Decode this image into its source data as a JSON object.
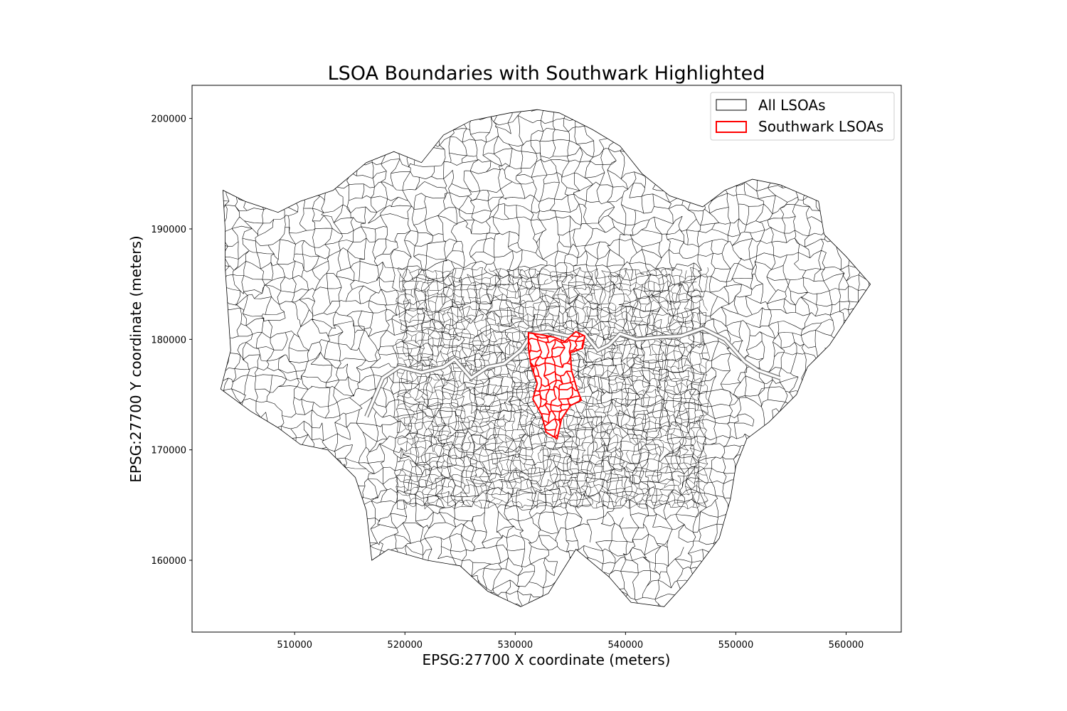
{
  "chart_data": {
    "type": "map",
    "title": "LSOA Boundaries with Southwark Highlighted",
    "xlabel": "EPSG:27700 X coordinate (meters)",
    "ylabel": "EPSG:27700 Y coordinate (meters)",
    "xlim": [
      500700,
      565000
    ],
    "ylim": [
      153500,
      203000
    ],
    "x_ticks": [
      510000,
      520000,
      530000,
      540000,
      550000,
      560000
    ],
    "x_tick_labels": [
      "510000",
      "520000",
      "530000",
      "540000",
      "550000",
      "560000"
    ],
    "y_ticks": [
      160000,
      170000,
      180000,
      190000,
      200000
    ],
    "y_tick_labels": [
      "160000",
      "170000",
      "180000",
      "190000",
      "200000"
    ],
    "grid": true,
    "legend": {
      "placement": "upper right",
      "entries": [
        {
          "label": "All LSOAs",
          "edge_color": "#000000"
        },
        {
          "label": "Southwark LSOAs",
          "edge_color": "#ff0000"
        }
      ]
    },
    "layers": [
      {
        "name": "All LSOAs",
        "edge_color": "#000000",
        "outline_epsg27700": [
          [
            503300,
            175500
          ],
          [
            504200,
            179000
          ],
          [
            504000,
            182000
          ],
          [
            503700,
            186500
          ],
          [
            503700,
            190000
          ],
          [
            503500,
            193500
          ],
          [
            505500,
            192500
          ],
          [
            508500,
            191500
          ],
          [
            510500,
            192500
          ],
          [
            513500,
            193500
          ],
          [
            516500,
            196000
          ],
          [
            519000,
            197000
          ],
          [
            521500,
            196000
          ],
          [
            523500,
            198500
          ],
          [
            526000,
            199800
          ],
          [
            529500,
            200500
          ],
          [
            532000,
            200800
          ],
          [
            534000,
            200500
          ],
          [
            537000,
            199000
          ],
          [
            539500,
            197500
          ],
          [
            541500,
            195000
          ],
          [
            544000,
            193000
          ],
          [
            547000,
            192000
          ],
          [
            549000,
            193500
          ],
          [
            551500,
            194500
          ],
          [
            554000,
            194000
          ],
          [
            557500,
            192500
          ],
          [
            558000,
            189500
          ],
          [
            560000,
            187500
          ],
          [
            562200,
            185000
          ],
          [
            560500,
            182500
          ],
          [
            558500,
            179500
          ],
          [
            556500,
            177500
          ],
          [
            555500,
            175000
          ],
          [
            553000,
            172500
          ],
          [
            551000,
            171000
          ],
          [
            550000,
            168500
          ],
          [
            549500,
            165500
          ],
          [
            548500,
            162000
          ],
          [
            545500,
            158000
          ],
          [
            543500,
            155800
          ],
          [
            540500,
            156200
          ],
          [
            538500,
            158500
          ],
          [
            535500,
            161000
          ],
          [
            533000,
            157000
          ],
          [
            530500,
            155800
          ],
          [
            527500,
            157200
          ],
          [
            525000,
            159500
          ],
          [
            522000,
            160000
          ],
          [
            518500,
            161000
          ],
          [
            517000,
            160000
          ],
          [
            516500,
            164500
          ],
          [
            515500,
            167500
          ],
          [
            513000,
            170000
          ],
          [
            510500,
            170500
          ],
          [
            508500,
            172000
          ],
          [
            506000,
            173500
          ],
          [
            503300,
            175500
          ]
        ]
      },
      {
        "name": "Southwark LSOAs",
        "edge_color": "#ff0000",
        "outline_epsg27700": [
          [
            531200,
            180600
          ],
          [
            532500,
            180400
          ],
          [
            533500,
            180200
          ],
          [
            534500,
            179800
          ],
          [
            535500,
            180700
          ],
          [
            536300,
            180300
          ],
          [
            536100,
            179200
          ],
          [
            535000,
            178800
          ],
          [
            535100,
            177200
          ],
          [
            535600,
            175500
          ],
          [
            536000,
            174500
          ],
          [
            535000,
            174000
          ],
          [
            534200,
            172800
          ],
          [
            533800,
            171000
          ],
          [
            532800,
            171600
          ],
          [
            532400,
            173200
          ],
          [
            531600,
            174600
          ],
          [
            532000,
            176000
          ],
          [
            531400,
            177800
          ],
          [
            531200,
            179200
          ],
          [
            531200,
            180600
          ]
        ]
      }
    ],
    "river_thames_epsg27700": [
      [
        516500,
        173000
      ],
      [
        518000,
        176500
      ],
      [
        519500,
        177500
      ],
      [
        521500,
        177000
      ],
      [
        523500,
        177500
      ],
      [
        524500,
        178200
      ],
      [
        526000,
        176500
      ],
      [
        527500,
        177500
      ],
      [
        529000,
        177800
      ],
      [
        530500,
        179000
      ],
      [
        531500,
        180500
      ],
      [
        533000,
        180700
      ],
      [
        534800,
        180300
      ],
      [
        536200,
        180600
      ],
      [
        537500,
        179000
      ],
      [
        538500,
        179500
      ],
      [
        539500,
        180500
      ],
      [
        541000,
        180000
      ],
      [
        543000,
        180200
      ],
      [
        545000,
        180300
      ],
      [
        547000,
        181000
      ],
      [
        549000,
        180000
      ],
      [
        550800,
        178000
      ],
      [
        552000,
        177200
      ],
      [
        554000,
        176500
      ]
    ]
  }
}
